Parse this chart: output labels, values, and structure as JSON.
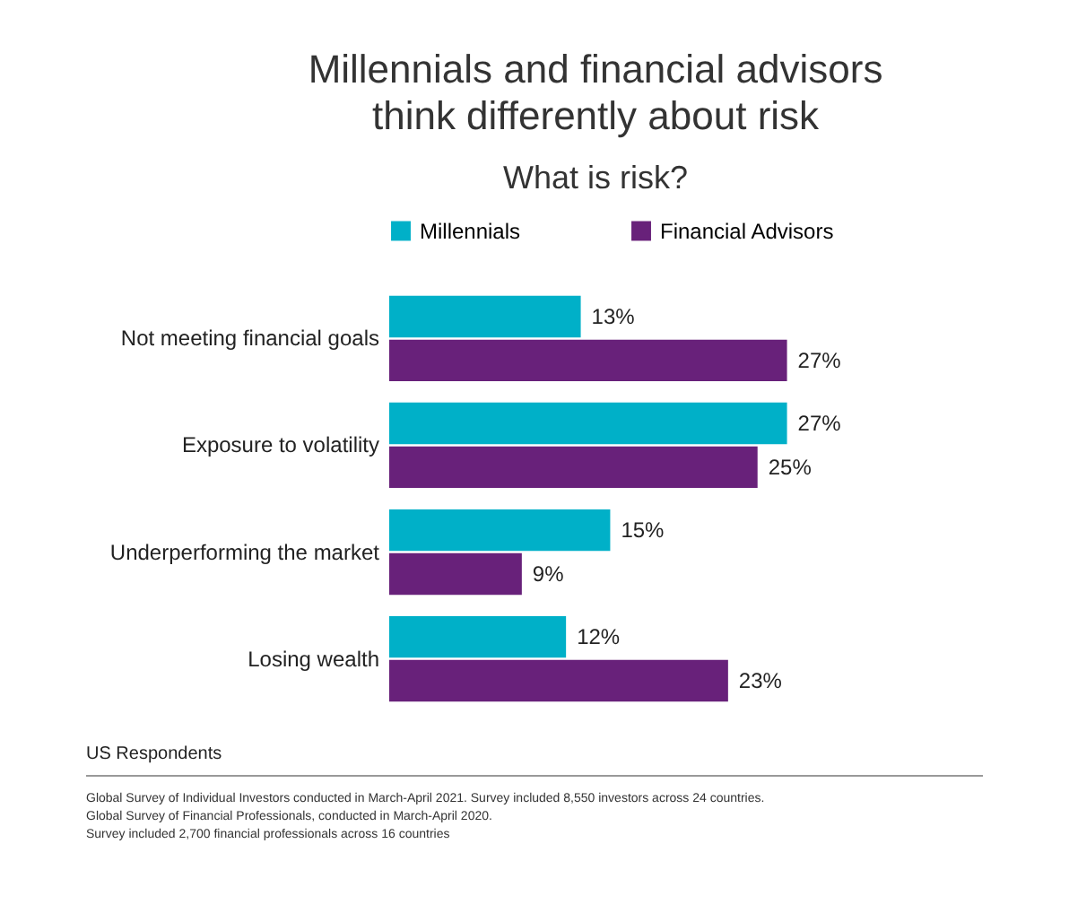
{
  "chart_data": {
    "type": "bar",
    "orientation": "horizontal",
    "title": [
      "Millennials and financial advisors",
      "think differently about risk"
    ],
    "subtitle": "What is risk?",
    "categories": [
      "Not meeting financial goals",
      "Exposure to volatility",
      "Underperforming the market",
      "Losing wealth"
    ],
    "series": [
      {
        "name": "Millennials",
        "color": "#00b0c8",
        "values": [
          13,
          27,
          15,
          12
        ],
        "value_labels": [
          "13%",
          "27%",
          "15%",
          "12%"
        ]
      },
      {
        "name": "Financial Advisors",
        "color": "#68217a",
        "values": [
          27,
          25,
          9,
          23
        ],
        "value_labels": [
          "27%",
          "25%",
          "9%",
          "23%"
        ]
      }
    ],
    "legend": "top",
    "annotations": [
      "US Respondents",
      "Global Survey of Individual Investors conducted in March-April 2021. Survey included 8,550 investors across 24 countries.",
      "Global Survey of Financial Professionals, conducted in March-April 2020.",
      "Survey included 2,700 financial professionals across 16 countries"
    ]
  }
}
